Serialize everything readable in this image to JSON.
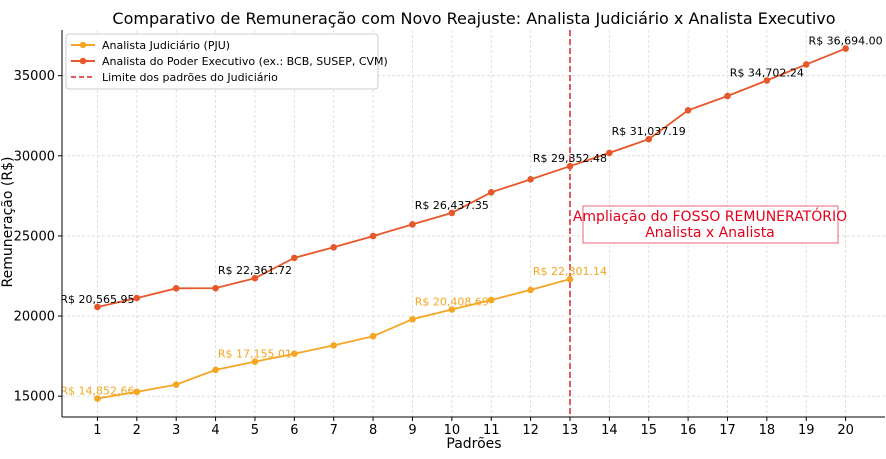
{
  "chart_data": {
    "type": "line",
    "title": "Comparativo de Remuneração com Novo Reajuste: Analista Judiciário x Analista Executivo",
    "xlabel": "Padrões",
    "ylabel": "Remuneração (R$)",
    "x": [
      1,
      2,
      3,
      4,
      5,
      6,
      7,
      8,
      9,
      10,
      11,
      12,
      13,
      14,
      15,
      16,
      17,
      18,
      19,
      20
    ],
    "xlim": [
      0.1,
      21.0
    ],
    "ylim": [
      13700,
      37850
    ],
    "yticks": [
      15000,
      20000,
      25000,
      30000,
      35000
    ],
    "ytick_labels": [
      "15000",
      "20000",
      "25000",
      "30000",
      "35000"
    ],
    "grid": true,
    "legend_position": "top-left",
    "series": [
      {
        "name": "Analista Judiciário (PJU)",
        "color": "#f5a623",
        "x": [
          1,
          2,
          3,
          4,
          5,
          6,
          7,
          8,
          9,
          10,
          11,
          12,
          13
        ],
        "values": [
          14852.66,
          15270,
          15720,
          16640,
          17155.01,
          17650,
          18170,
          18740,
          19800,
          20408.69,
          21000,
          21630,
          22301.14
        ]
      },
      {
        "name": "Analista do Poder Executivo (ex.: BCB, SUSEP, CVM)",
        "color": "#e8572a",
        "x": [
          1,
          2,
          3,
          4,
          5,
          6,
          7,
          8,
          9,
          10,
          11,
          12,
          13,
          14,
          15,
          16,
          17,
          18,
          19,
          20
        ],
        "values": [
          20565.95,
          21120,
          21730,
          21740,
          22361.72,
          23630,
          24290,
          24990,
          25720,
          26437.35,
          27720,
          28530,
          29352.48,
          30180,
          31037.19,
          32840,
          33730,
          34702.24,
          35700,
          36694.0
        ]
      }
    ],
    "point_labels": [
      {
        "series": 0,
        "x": 1,
        "text": "R$ 14,852.66"
      },
      {
        "series": 0,
        "x": 5,
        "text": "R$ 17,155.01"
      },
      {
        "series": 0,
        "x": 10,
        "text": "R$ 20,408.69"
      },
      {
        "series": 0,
        "x": 13,
        "text": "R$ 22,301.14"
      },
      {
        "series": 1,
        "x": 1,
        "text": "R$ 20,565.95"
      },
      {
        "series": 1,
        "x": 5,
        "text": "R$ 22,361.72"
      },
      {
        "series": 1,
        "x": 10,
        "text": "R$ 26,437.35"
      },
      {
        "series": 1,
        "x": 13,
        "text": "R$ 29,352.48"
      },
      {
        "series": 1,
        "x": 15,
        "text": "R$ 31,037.19"
      },
      {
        "series": 1,
        "x": 18,
        "text": "R$ 34,702.24"
      },
      {
        "series": 1,
        "x": 20,
        "text": "R$ 36,694.00"
      }
    ],
    "vline": {
      "x": 13,
      "label": "Limite dos padrões do Judiciário",
      "color": "#d62728"
    },
    "annotation": {
      "lines": [
        "Ampliação do FOSSO REMUNERATÓRIO",
        "Analista x Analista"
      ],
      "color": "#e3001b"
    }
  }
}
